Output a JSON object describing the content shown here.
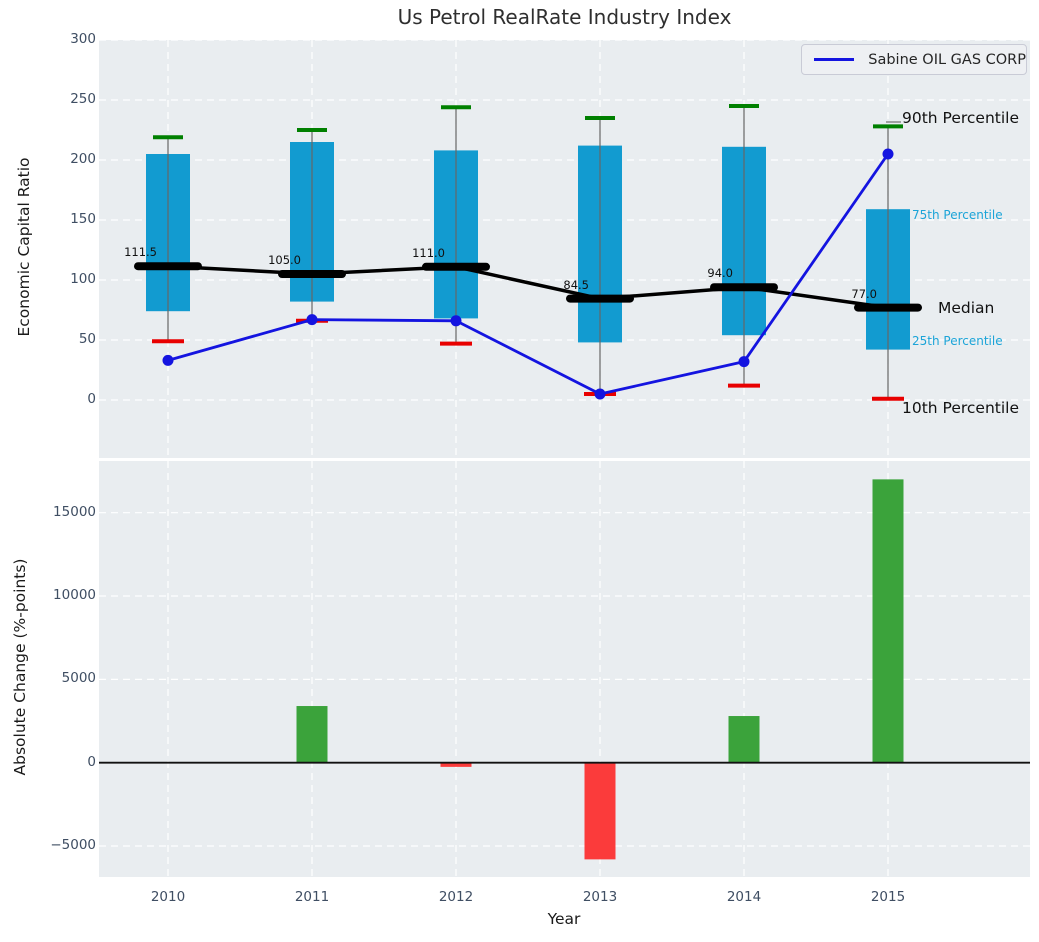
{
  "title": "Us Petrol RealRate Industry Index",
  "legend": {
    "label": "Sabine OIL GAS CORP"
  },
  "annotations": {
    "p90": "90th Percentile",
    "p75": "75th Percentile",
    "median": "Median",
    "p25": "25th Percentile",
    "p10": "10th Percentile"
  },
  "top_chart": {
    "ylabel": "Economic Capital Ratio",
    "yticks": [
      {
        "label": "0",
        "value": 0
      },
      {
        "label": "50",
        "value": 50
      },
      {
        "label": "100",
        "value": 100
      },
      {
        "label": "150",
        "value": 150
      },
      {
        "label": "200",
        "value": 200
      },
      {
        "label": "250",
        "value": 250
      },
      {
        "label": "300",
        "value": 300
      }
    ]
  },
  "bottom_chart": {
    "ylabel": "Absolute Change (%-points)",
    "xlabel": "Year",
    "yticks": [
      {
        "label": "−5000",
        "value": -5000
      },
      {
        "label": "0",
        "value": 0
      },
      {
        "label": "5000",
        "value": 5000
      },
      {
        "label": "10000",
        "value": 10000
      },
      {
        "label": "15000",
        "value": 15000
      }
    ]
  },
  "colors": {
    "box_cyan": "#129bd0",
    "percentile_caption_cyan": "#1ba4d8",
    "cap_green": "#008000",
    "cap_red": "#e80000",
    "bar_green": "#3ba33b",
    "bar_red": "#fb3b3b",
    "sabine_blue": "#1414e0",
    "median_black": "#000000",
    "whisker_gray": "#666666",
    "plot_background": "#e9edf0",
    "gridline_white": "#ffffff"
  },
  "chart_data": [
    {
      "type": "box",
      "title": "Us Petrol RealRate Industry Index",
      "ylabel": "Economic Capital Ratio",
      "categories": [
        "2010",
        "2011",
        "2012",
        "2013",
        "2014",
        "2015"
      ],
      "series": [
        {
          "name": "90th Percentile",
          "values": [
            219,
            225,
            244,
            235,
            245,
            228
          ]
        },
        {
          "name": "75th Percentile",
          "values": [
            205,
            215,
            208,
            212,
            211,
            159
          ]
        },
        {
          "name": "Median",
          "values": [
            111.5,
            105.0,
            111.0,
            84.5,
            94.0,
            77.0
          ]
        },
        {
          "name": "25th Percentile",
          "values": [
            74,
            82,
            68,
            48,
            54,
            42
          ]
        },
        {
          "name": "10th Percentile",
          "values": [
            49,
            66,
            47,
            5,
            12,
            1
          ]
        },
        {
          "name": "Sabine OIL GAS CORP",
          "values": [
            33,
            67,
            66,
            5,
            32,
            205
          ]
        }
      ],
      "median_labels": [
        "111.5",
        "105.0",
        "111.0",
        "84.5",
        "94.0",
        "77.0"
      ],
      "ylim": [
        -48,
        300
      ],
      "grid": true,
      "legend_position": "upper right"
    },
    {
      "type": "bar",
      "categories": [
        "2010",
        "2011",
        "2012",
        "2013",
        "2014",
        "2015"
      ],
      "values": [
        0,
        3400,
        -250,
        -5800,
        2800,
        17000
      ],
      "xlabel": "Year",
      "ylabel": "Absolute Change (%-points)",
      "ylim": [
        -7100,
        18300
      ],
      "grid": true
    }
  ]
}
